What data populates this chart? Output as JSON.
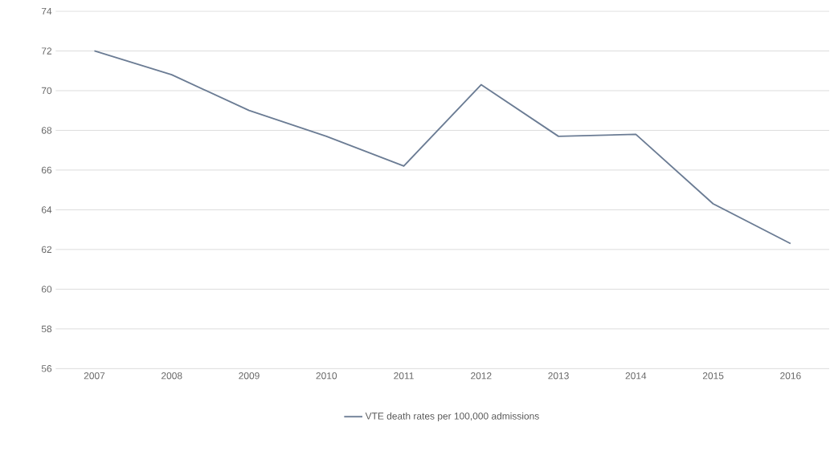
{
  "chart_data": {
    "type": "line",
    "categories": [
      "2007",
      "2008",
      "2009",
      "2010",
      "2011",
      "2012",
      "2013",
      "2014",
      "2015",
      "2016"
    ],
    "series": [
      {
        "name": "VTE death rates per 100,000 admissions",
        "color": "#6b7c94",
        "values": [
          72.0,
          70.8,
          69.0,
          67.7,
          66.2,
          70.3,
          67.7,
          67.8,
          64.3,
          62.3
        ]
      }
    ],
    "ylim": [
      56,
      74
    ],
    "yticks": [
      56,
      58,
      60,
      62,
      64,
      66,
      68,
      70,
      72,
      74
    ],
    "grid": "y",
    "legend": "bottom",
    "marker": "none",
    "line_style": "solid"
  }
}
